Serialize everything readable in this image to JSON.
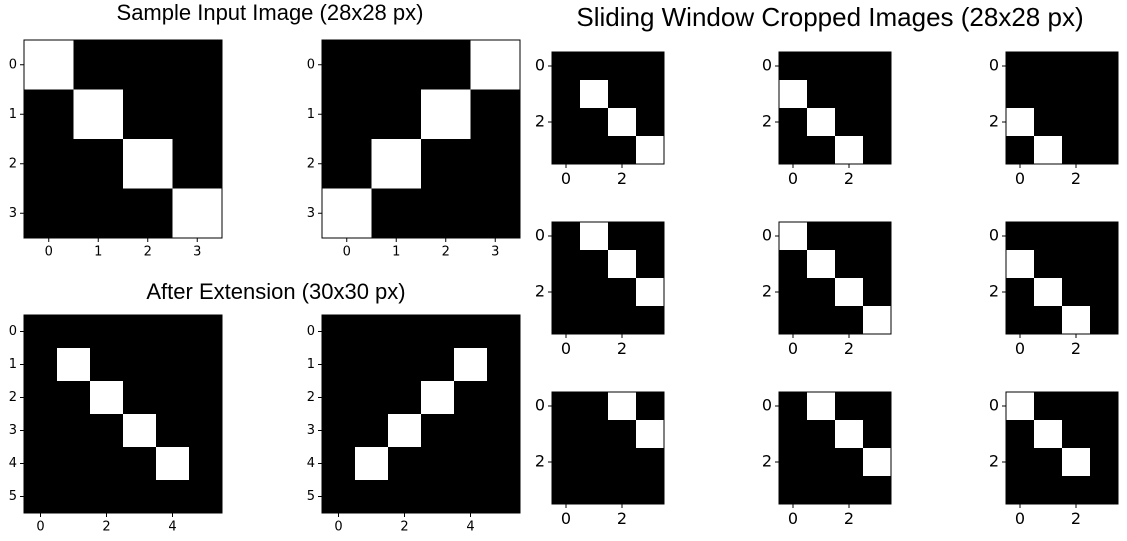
{
  "headings": [
    "Sample Input Image (28x28 px)",
    "After Extension (30x30 px)",
    "Sliding Window Cropped Images (28x28 px)"
  ],
  "chart_data": [
    {
      "type": "heatmap",
      "colors": [
        "#000000",
        "#ffffff"
      ],
      "xlim": [
        -0.5,
        3.5
      ],
      "ylim": [
        3.5,
        -0.5
      ],
      "xticks": [
        0,
        1,
        2,
        3
      ],
      "yticks": [
        0,
        1,
        2,
        3
      ],
      "values": [
        [
          1,
          0,
          0,
          0
        ],
        [
          0,
          1,
          0,
          0
        ],
        [
          0,
          0,
          1,
          0
        ],
        [
          0,
          0,
          0,
          1
        ]
      ]
    },
    {
      "type": "heatmap",
      "colors": [
        "#000000",
        "#ffffff"
      ],
      "xlim": [
        -0.5,
        3.5
      ],
      "ylim": [
        3.5,
        -0.5
      ],
      "xticks": [
        0,
        1,
        2,
        3
      ],
      "yticks": [
        0,
        1,
        2,
        3
      ],
      "values": [
        [
          0,
          0,
          0,
          1
        ],
        [
          0,
          0,
          1,
          0
        ],
        [
          0,
          1,
          0,
          0
        ],
        [
          1,
          0,
          0,
          0
        ]
      ]
    },
    {
      "type": "heatmap",
      "colors": [
        "#000000",
        "#ffffff"
      ],
      "xlim": [
        -0.5,
        5.5
      ],
      "ylim": [
        5.5,
        -0.5
      ],
      "xticks": [
        0,
        2,
        4
      ],
      "yticks": [
        0,
        1,
        2,
        3,
        4,
        5
      ],
      "values": [
        [
          0,
          0,
          0,
          0,
          0,
          0
        ],
        [
          0,
          1,
          0,
          0,
          0,
          0
        ],
        [
          0,
          0,
          1,
          0,
          0,
          0
        ],
        [
          0,
          0,
          0,
          1,
          0,
          0
        ],
        [
          0,
          0,
          0,
          0,
          1,
          0
        ],
        [
          0,
          0,
          0,
          0,
          0,
          0
        ]
      ]
    },
    {
      "type": "heatmap",
      "colors": [
        "#000000",
        "#ffffff"
      ],
      "xlim": [
        -0.5,
        5.5
      ],
      "ylim": [
        5.5,
        -0.5
      ],
      "xticks": [
        0,
        2,
        4
      ],
      "yticks": [
        0,
        1,
        2,
        3,
        4,
        5
      ],
      "values": [
        [
          0,
          0,
          0,
          0,
          0,
          0
        ],
        [
          0,
          0,
          0,
          0,
          1,
          0
        ],
        [
          0,
          0,
          0,
          1,
          0,
          0
        ],
        [
          0,
          0,
          1,
          0,
          0,
          0
        ],
        [
          0,
          1,
          0,
          0,
          0,
          0
        ],
        [
          0,
          0,
          0,
          0,
          0,
          0
        ]
      ]
    },
    {
      "type": "heatmap",
      "colors": [
        "#000000",
        "#ffffff"
      ],
      "xlim": [
        -0.5,
        3.5
      ],
      "ylim": [
        3.5,
        -0.5
      ],
      "xticks": [
        0,
        2
      ],
      "yticks": [
        0,
        2
      ],
      "values": [
        [
          0,
          0,
          0,
          0
        ],
        [
          0,
          1,
          0,
          0
        ],
        [
          0,
          0,
          1,
          0
        ],
        [
          0,
          0,
          0,
          1
        ]
      ]
    },
    {
      "type": "heatmap",
      "colors": [
        "#000000",
        "#ffffff"
      ],
      "xlim": [
        -0.5,
        3.5
      ],
      "ylim": [
        3.5,
        -0.5
      ],
      "xticks": [
        0,
        2
      ],
      "yticks": [
        0,
        2
      ],
      "values": [
        [
          0,
          0,
          0,
          0
        ],
        [
          1,
          0,
          0,
          0
        ],
        [
          0,
          1,
          0,
          0
        ],
        [
          0,
          0,
          1,
          0
        ]
      ]
    },
    {
      "type": "heatmap",
      "colors": [
        "#000000",
        "#ffffff"
      ],
      "xlim": [
        -0.5,
        3.5
      ],
      "ylim": [
        3.5,
        -0.5
      ],
      "xticks": [
        0,
        2
      ],
      "yticks": [
        0,
        2
      ],
      "values": [
        [
          0,
          0,
          0,
          0
        ],
        [
          0,
          0,
          0,
          0
        ],
        [
          1,
          0,
          0,
          0
        ],
        [
          0,
          1,
          0,
          0
        ]
      ]
    },
    {
      "type": "heatmap",
      "colors": [
        "#000000",
        "#ffffff"
      ],
      "xlim": [
        -0.5,
        3.5
      ],
      "ylim": [
        3.5,
        -0.5
      ],
      "xticks": [
        0,
        2
      ],
      "yticks": [
        0,
        2
      ],
      "values": [
        [
          0,
          1,
          0,
          0
        ],
        [
          0,
          0,
          1,
          0
        ],
        [
          0,
          0,
          0,
          1
        ],
        [
          0,
          0,
          0,
          0
        ]
      ]
    },
    {
      "type": "heatmap",
      "colors": [
        "#000000",
        "#ffffff"
      ],
      "xlim": [
        -0.5,
        3.5
      ],
      "ylim": [
        3.5,
        -0.5
      ],
      "xticks": [
        0,
        2
      ],
      "yticks": [
        0,
        2
      ],
      "values": [
        [
          1,
          0,
          0,
          0
        ],
        [
          0,
          1,
          0,
          0
        ],
        [
          0,
          0,
          1,
          0
        ],
        [
          0,
          0,
          0,
          1
        ]
      ]
    },
    {
      "type": "heatmap",
      "colors": [
        "#000000",
        "#ffffff"
      ],
      "xlim": [
        -0.5,
        3.5
      ],
      "ylim": [
        3.5,
        -0.5
      ],
      "xticks": [
        0,
        2
      ],
      "yticks": [
        0,
        2
      ],
      "values": [
        [
          0,
          0,
          0,
          0
        ],
        [
          1,
          0,
          0,
          0
        ],
        [
          0,
          1,
          0,
          0
        ],
        [
          0,
          0,
          1,
          0
        ]
      ]
    },
    {
      "type": "heatmap",
      "colors": [
        "#000000",
        "#ffffff"
      ],
      "xlim": [
        -0.5,
        3.5
      ],
      "ylim": [
        3.5,
        -0.5
      ],
      "xticks": [
        0,
        2
      ],
      "yticks": [
        0,
        2
      ],
      "values": [
        [
          0,
          0,
          1,
          0
        ],
        [
          0,
          0,
          0,
          1
        ],
        [
          0,
          0,
          0,
          0
        ],
        [
          0,
          0,
          0,
          0
        ]
      ]
    },
    {
      "type": "heatmap",
      "colors": [
        "#000000",
        "#ffffff"
      ],
      "xlim": [
        -0.5,
        3.5
      ],
      "ylim": [
        3.5,
        -0.5
      ],
      "xticks": [
        0,
        2
      ],
      "yticks": [
        0,
        2
      ],
      "values": [
        [
          0,
          1,
          0,
          0
        ],
        [
          0,
          0,
          1,
          0
        ],
        [
          0,
          0,
          0,
          1
        ],
        [
          0,
          0,
          0,
          0
        ]
      ]
    },
    {
      "type": "heatmap",
      "colors": [
        "#000000",
        "#ffffff"
      ],
      "xlim": [
        -0.5,
        3.5
      ],
      "ylim": [
        3.5,
        -0.5
      ],
      "xticks": [
        0,
        2
      ],
      "yticks": [
        0,
        2
      ],
      "values": [
        [
          1,
          0,
          0,
          0
        ],
        [
          0,
          1,
          0,
          0
        ],
        [
          0,
          0,
          1,
          0
        ],
        [
          0,
          0,
          0,
          0
        ]
      ]
    }
  ]
}
